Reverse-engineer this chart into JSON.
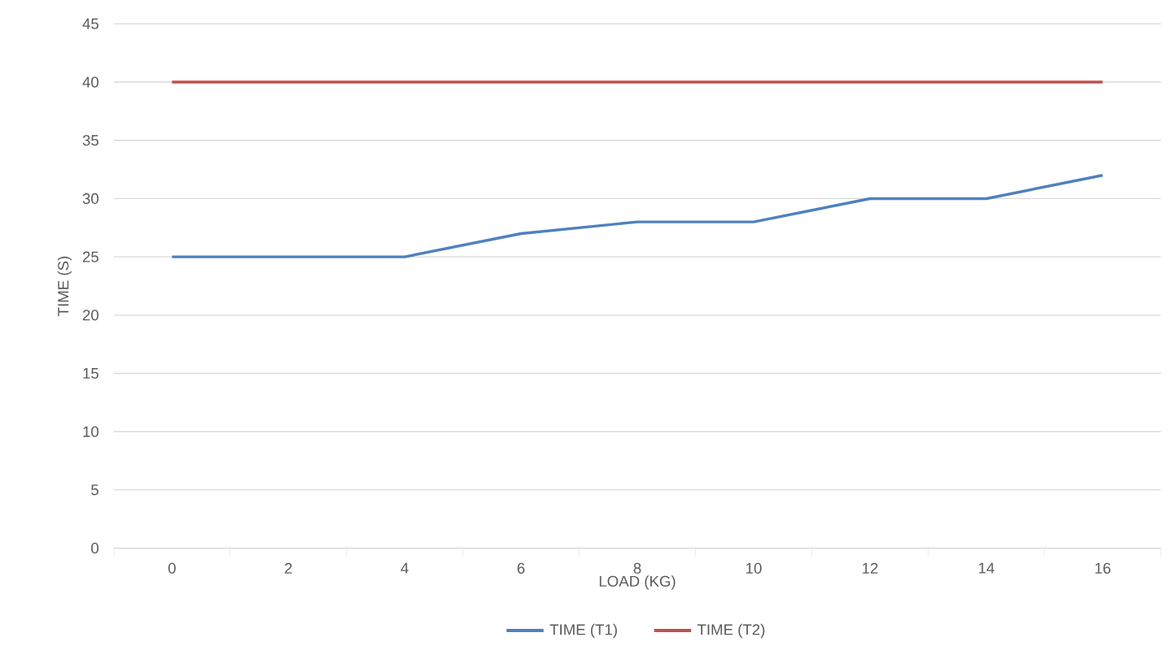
{
  "chart_data": {
    "type": "line",
    "xlabel": "LOAD (KG)",
    "ylabel": "TIME (S)",
    "categories": [
      "0",
      "2",
      "4",
      "6",
      "8",
      "10",
      "12",
      "14",
      "16"
    ],
    "series": [
      {
        "name": "TIME (T1)",
        "color": "#4f81bd",
        "values": [
          25,
          25,
          25,
          27,
          28,
          28,
          30,
          30,
          32
        ]
      },
      {
        "name": "TIME (T2)",
        "color": "#c0504d",
        "values": [
          40,
          40,
          40,
          40,
          40,
          40,
          40,
          40,
          40
        ]
      }
    ],
    "ylim": [
      0,
      45
    ],
    "yticks": [
      0,
      5,
      10,
      15,
      20,
      25,
      30,
      35,
      40,
      45
    ],
    "grid": "y",
    "legend": "bottom",
    "marker": "none",
    "line_style": "solid"
  }
}
